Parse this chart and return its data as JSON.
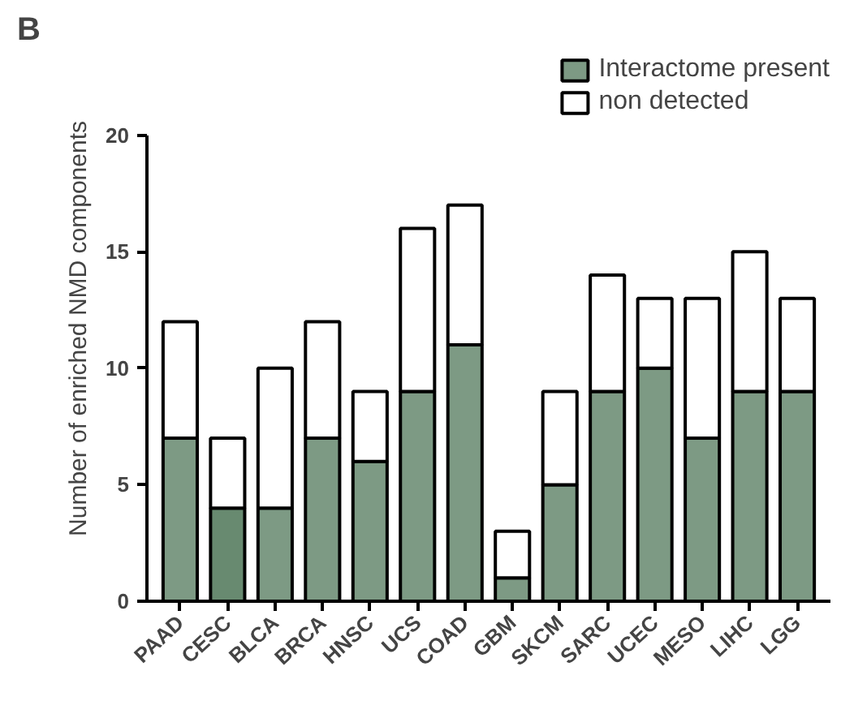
{
  "chart_data": {
    "type": "bar",
    "stacked": true,
    "ylabel": "Number of enriched NMD components",
    "annotations": [
      "B"
    ],
    "categories": [
      "PAAD",
      "CESC",
      "BLCA",
      "BRCA",
      "HNSC",
      "UCS",
      "COAD",
      "GBM",
      "SKCM",
      "SARC",
      "UCEC",
      "MESO",
      "LIHC",
      "LGG"
    ],
    "series": [
      {
        "name": "Interactome present",
        "color": "#7d9a84",
        "colors": [
          "#7d9a84",
          "#688a70",
          "#7d9a84",
          "#7d9a84",
          "#7d9a84",
          "#7d9a84",
          "#7d9a84",
          "#7d9a84",
          "#7d9a84",
          "#7d9a84",
          "#7d9a84",
          "#7d9a84",
          "#7d9a84",
          "#7d9a84"
        ],
        "values": [
          7,
          4,
          4,
          7,
          6,
          9,
          11,
          1,
          5,
          9,
          10,
          7,
          9,
          9
        ]
      },
      {
        "name": "non detected",
        "color": "#ffffff",
        "values": [
          5,
          3,
          6,
          5,
          3,
          7,
          6,
          2,
          4,
          5,
          3,
          6,
          6,
          4
        ]
      }
    ],
    "ylim": [
      0,
      20
    ],
    "yticks": [
      0,
      5,
      10,
      15,
      20
    ],
    "grid": false,
    "legend": "top right"
  }
}
